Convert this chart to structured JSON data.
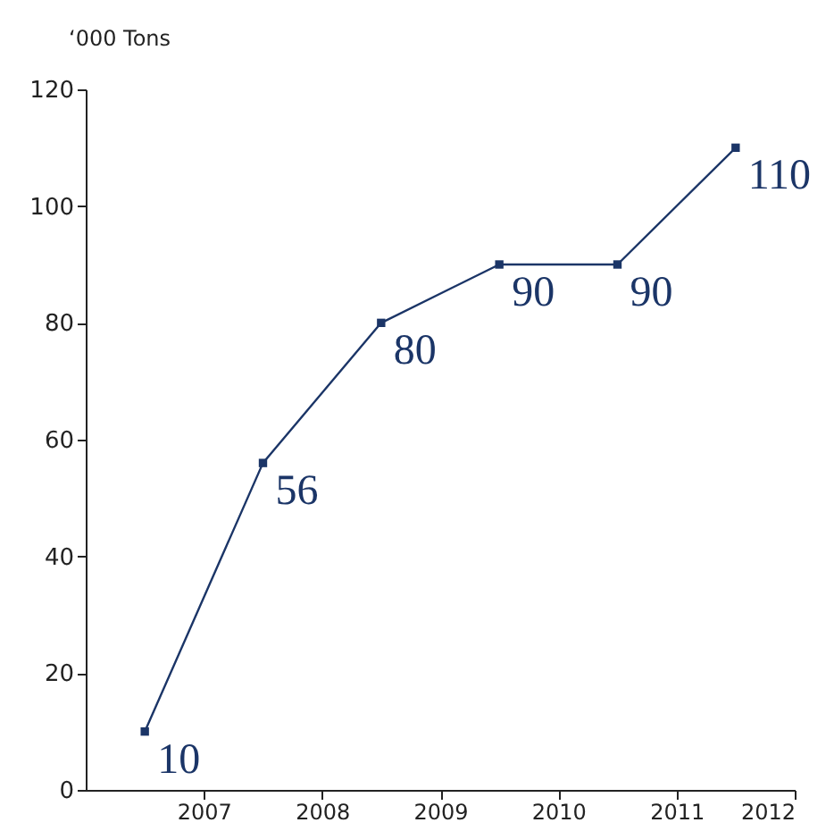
{
  "chart_data": {
    "type": "line",
    "ylabel": "‘000 Tons",
    "x": [
      2006.5,
      2007.5,
      2008.5,
      2009.5,
      2010.5,
      2011.5
    ],
    "series": [
      {
        "color": "#1b3567",
        "values": [
          10,
          56,
          80,
          90,
          90,
          110
        ]
      }
    ],
    "xlim": [
      2006,
      2012
    ],
    "xticks": [
      2007,
      2008,
      2009,
      2010,
      2011,
      2012
    ],
    "ylim": [
      0,
      120
    ],
    "yticks": [
      0,
      20,
      40,
      60,
      80,
      100,
      120
    ],
    "grid": false,
    "legend": false,
    "marker": "square",
    "line_style": "solid",
    "data_labels": true
  }
}
